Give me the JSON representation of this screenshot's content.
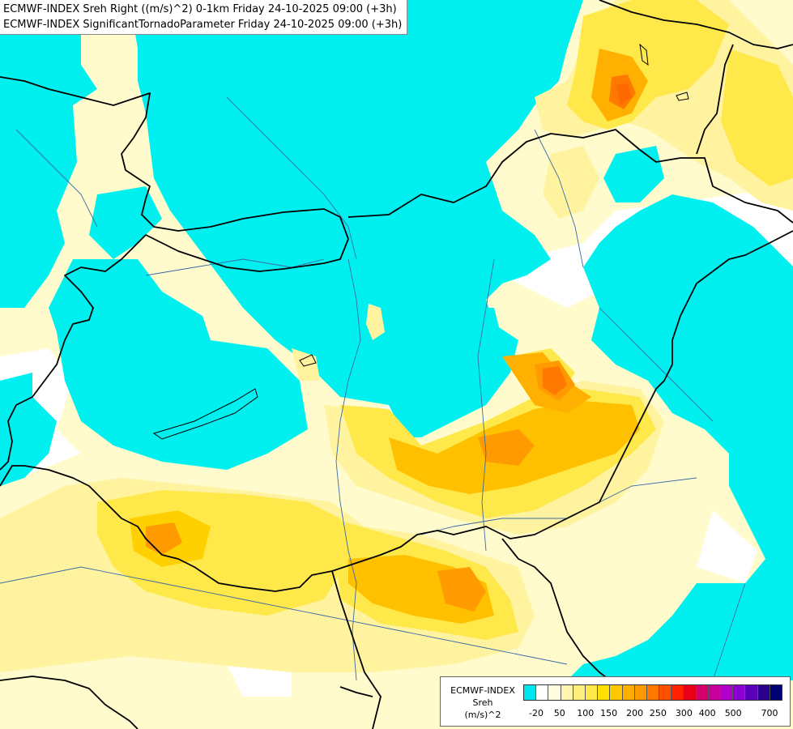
{
  "header": {
    "line1": "ECMWF-INDEX Sreh Right ((m/s)^2) 0-1km Friday 24-10-2025 09:00 (+3h)",
    "line2": "ECMWF-INDEX SignificantTornadoParameter Friday 24-10-2025 09:00 (+3h)"
  },
  "legend": {
    "title_line1": "ECMWF-INDEX",
    "title_line2": "Sreh",
    "units": "(m/s)^2",
    "colors": [
      "#00e5f0",
      "#ffffff",
      "#fffde0",
      "#fff7b0",
      "#fff080",
      "#ffe84a",
      "#ffe000",
      "#ffc800",
      "#ffb000",
      "#ff9a00",
      "#ff7800",
      "#ff5000",
      "#ff2200",
      "#e8001a",
      "#d4006c",
      "#c8009a",
      "#b000c8",
      "#8a00d0",
      "#5a00b8",
      "#28008a",
      "#000070"
    ],
    "ticks": [
      "-20",
      "50",
      "100",
      "150",
      "200",
      "250",
      "300",
      "400",
      "500",
      "700"
    ]
  },
  "palette": {
    "cyan": "#00f0f0",
    "white": "#ffffff",
    "pale_yellow": "#fffbcc",
    "light_yellow": "#fff3a0",
    "yellow": "#ffe84a",
    "gold": "#ffd000",
    "orange": "#ffb000",
    "dark_orange": "#ff9a00",
    "red_orange": "#ff6a00",
    "border": "#000000",
    "river": "#3a6aa8"
  }
}
